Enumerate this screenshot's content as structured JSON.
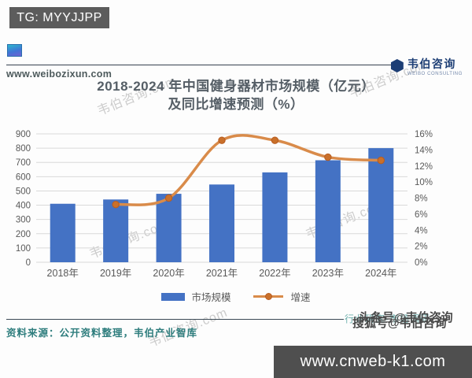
{
  "header": {
    "tg_badge": "TG: MYYJJPP",
    "site_url": "www.weibozixun.com",
    "brand_name": "韦伯咨询",
    "brand_subtitle": "WEIBO CONSULTING"
  },
  "title_line1": "2018-2024 年中国健身器材市场规模（亿元）",
  "title_line2": "及同比增速预测（%）",
  "chart_data": {
    "type": "bar",
    "title": "2018-2024 年中国健身器材市场规模（亿元）及同比增速预测（%）",
    "categories": [
      "2018年",
      "2019年",
      "2020年",
      "2021年",
      "2022年",
      "2023年",
      "2024年"
    ],
    "series": [
      {
        "name": "市场规模",
        "type": "bar",
        "axis": "left",
        "color": "#4472c4",
        "values": [
          410,
          440,
          480,
          545,
          630,
          715,
          800
        ]
      },
      {
        "name": "增速",
        "type": "line",
        "axis": "right",
        "color": "#d98b4a",
        "marker_color": "#c9702b",
        "values": [
          null,
          7.2,
          8.0,
          15.2,
          15.2,
          13.1,
          12.7
        ]
      }
    ],
    "left_axis": {
      "min": 0,
      "max": 900,
      "step": 100,
      "labels": [
        "0",
        "100",
        "200",
        "300",
        "400",
        "500",
        "600",
        "700",
        "800",
        "900"
      ]
    },
    "right_axis": {
      "min": 0,
      "max": 16,
      "step": 2,
      "labels": [
        "0%",
        "2%",
        "4%",
        "6%",
        "8%",
        "10%",
        "12%",
        "14%",
        "16%"
      ]
    },
    "grid": true,
    "legend_position": "bottom"
  },
  "footer": {
    "source": "资料来源：公开资料整理，韦伯产业智库",
    "tagline": "行业研究·市场调研",
    "overlay_watermark_1": "头条号@韦伯咨询",
    "overlay_watermark_2": "搜狐号@韦伯咨询",
    "site_box": "www.cnweb-k1.com"
  },
  "watermark_text": "韦伯咨询.com",
  "colors": {
    "bar": "#4472c4",
    "line": "#d98b4a",
    "marker": "#c9702b",
    "grid": "#d9d9d9",
    "axis_text": "#595959",
    "title_text": "#555e66",
    "source_text": "#2e7d7d"
  }
}
